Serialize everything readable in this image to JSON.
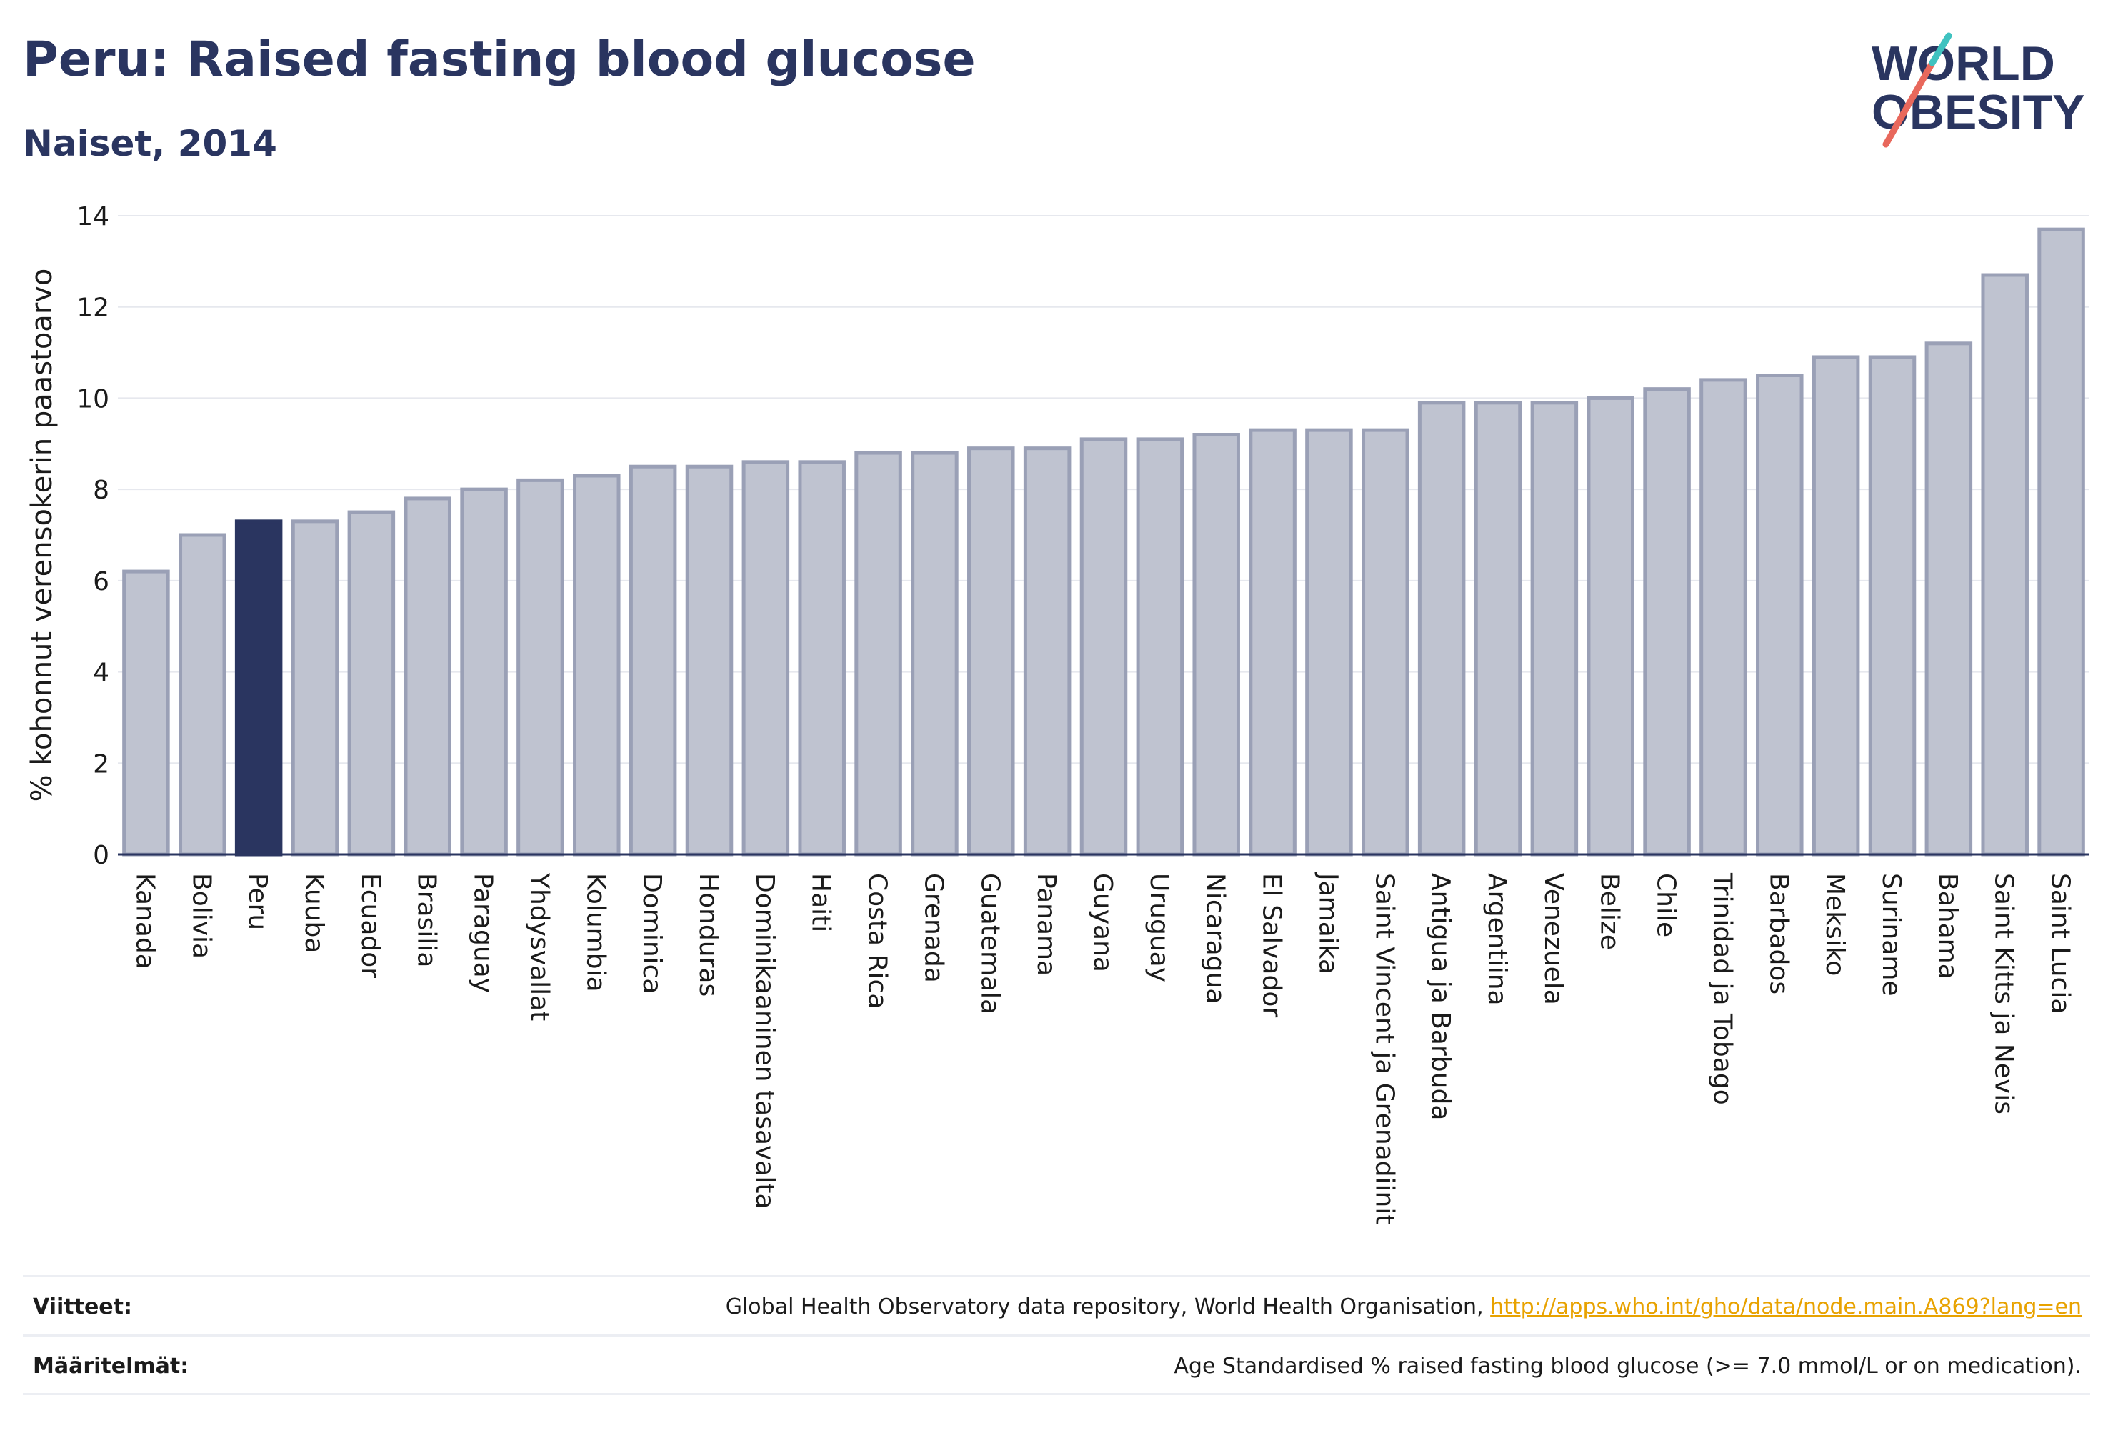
{
  "header": {
    "title": "Peru: Raised fasting blood glucose",
    "subtitle": "Naiset, 2014"
  },
  "logo": {
    "line1": "WORLD",
    "line2": "OBESITY",
    "accent_color": "#e8685c",
    "accent2_color": "#3fc2c0"
  },
  "colors": {
    "bar": "#bfc3d0",
    "bar_edge": "#9aa0b6",
    "highlight": "#2a3560",
    "grid": "#e6e8ee",
    "axis": "#2a3560"
  },
  "chart_data": {
    "type": "bar",
    "ylabel": "% kohonnut verensokerin paastoarvo",
    "ylim": [
      0,
      14
    ],
    "yticks": [
      0,
      2,
      4,
      6,
      8,
      10,
      12,
      14
    ],
    "highlight": "Peru",
    "grid": true,
    "categories": [
      "Kanada",
      "Bolivia",
      "Peru",
      "Kuuba",
      "Ecuador",
      "Brasilia",
      "Paraguay",
      "Yhdysvallat",
      "Kolumbia",
      "Dominica",
      "Honduras",
      "Dominikaaninen tasavalta",
      "Haiti",
      "Costa Rica",
      "Grenada",
      "Guatemala",
      "Panama",
      "Guyana",
      "Uruguay",
      "Nicaragua",
      "El Salvador",
      "Jamaika",
      "Saint Vincent ja Grenadiinit",
      "Antigua ja Barbuda",
      "Argentiina",
      "Venezuela",
      "Belize",
      "Chile",
      "Trinidad ja Tobago",
      "Barbados",
      "Meksiko",
      "Suriname",
      "Bahama",
      "Saint Kitts ja Nevis",
      "Saint Lucia"
    ],
    "values": [
      6.2,
      7.0,
      7.3,
      7.3,
      7.5,
      7.8,
      8.0,
      8.2,
      8.3,
      8.5,
      8.5,
      8.6,
      8.6,
      8.8,
      8.8,
      8.9,
      8.9,
      9.1,
      9.1,
      9.2,
      9.3,
      9.3,
      9.3,
      9.9,
      9.9,
      9.9,
      10.0,
      10.2,
      10.4,
      10.5,
      10.9,
      10.9,
      11.2,
      12.7,
      13.7
    ]
  },
  "footer": {
    "sources_label": "Viitteet:",
    "sources_text": "Global Health Observatory data repository, World Health Organisation, ",
    "sources_link": "http://apps.who.int/gho/data/node.main.A869?lang=en",
    "definitions_label": "Määritelmät:",
    "definitions_text": "Age Standardised % raised fasting blood glucose (>= 7.0 mmol/L or on medication)."
  }
}
